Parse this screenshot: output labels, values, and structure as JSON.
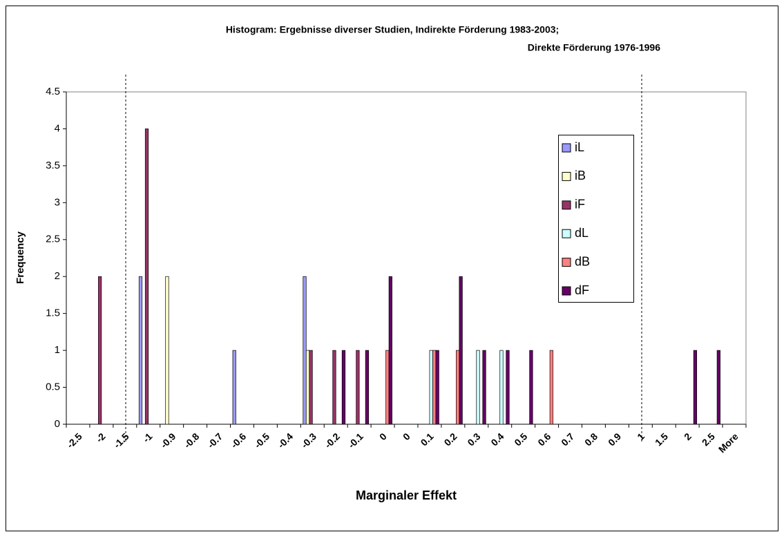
{
  "chart_data": {
    "type": "bar",
    "title": [
      "Histogram: Ergebnisse diverser Studien, Indirekte Förderung 1983-2003;",
      "Direkte Förderung 1976-1996"
    ],
    "x_label": "Marginaler Effekt",
    "y_label": "Frequency",
    "categories": [
      "-2.5",
      "-2",
      "-1.5",
      "-1",
      "-0.9",
      "-0.8",
      "-0.7",
      "-0.6",
      "-0.5",
      "-0.4",
      "-0.3",
      "-0.2",
      "-0.1",
      "0",
      "0",
      "0.1",
      "0.2",
      "0.3",
      "0.4",
      "0.5",
      "0.6",
      "0.7",
      "0.8",
      "0.9",
      "1",
      "1.5",
      "2",
      "2.5",
      "More"
    ],
    "series": [
      {
        "name": "iL",
        "color": "#9999ff",
        "values": [
          0,
          0,
          0,
          2,
          0,
          0,
          0,
          1,
          0,
          0,
          2,
          0,
          0,
          0,
          0,
          0,
          0,
          0,
          0,
          0,
          0,
          0,
          0,
          0,
          0,
          0,
          0,
          0,
          0
        ]
      },
      {
        "name": "iB",
        "color": "#ffffcc",
        "values": [
          0,
          0,
          0,
          0,
          2,
          0,
          0,
          0,
          0,
          0,
          1,
          0,
          0,
          0,
          0,
          0,
          0,
          0,
          0,
          0,
          0,
          0,
          0,
          0,
          0,
          0,
          0,
          0,
          0
        ]
      },
      {
        "name": "iF",
        "color": "#993366",
        "values": [
          0,
          2,
          0,
          4,
          0,
          0,
          0,
          0,
          0,
          0,
          1,
          1,
          1,
          0,
          0,
          0,
          0,
          0,
          0,
          0,
          0,
          0,
          0,
          0,
          0,
          0,
          0,
          0,
          0
        ]
      },
      {
        "name": "dL",
        "color": "#ccffff",
        "values": [
          0,
          0,
          0,
          0,
          0,
          0,
          0,
          0,
          0,
          0,
          0,
          0,
          0,
          0,
          0,
          1,
          0,
          1,
          1,
          0,
          0,
          0,
          0,
          0,
          0,
          0,
          0,
          0,
          0
        ]
      },
      {
        "name": "dB",
        "color": "#ff8080",
        "values": [
          0,
          0,
          0,
          0,
          0,
          0,
          0,
          0,
          0,
          0,
          0,
          0,
          0,
          1,
          0,
          1,
          1,
          0,
          0,
          0,
          1,
          0,
          0,
          0,
          0,
          0,
          0,
          0,
          0
        ]
      },
      {
        "name": "dF",
        "color": "#660066",
        "values": [
          0,
          0,
          0,
          0,
          0,
          0,
          0,
          0,
          0,
          0,
          0,
          1,
          1,
          2,
          0,
          1,
          2,
          1,
          1,
          1,
          0,
          0,
          0,
          0,
          0,
          0,
          1,
          1,
          0
        ]
      }
    ],
    "ylim": [
      0,
      4.5
    ],
    "yticks": [
      0,
      0.5,
      1,
      1.5,
      2,
      2.5,
      3,
      3.5,
      4,
      4.5
    ],
    "grid": false,
    "legend": "right"
  }
}
